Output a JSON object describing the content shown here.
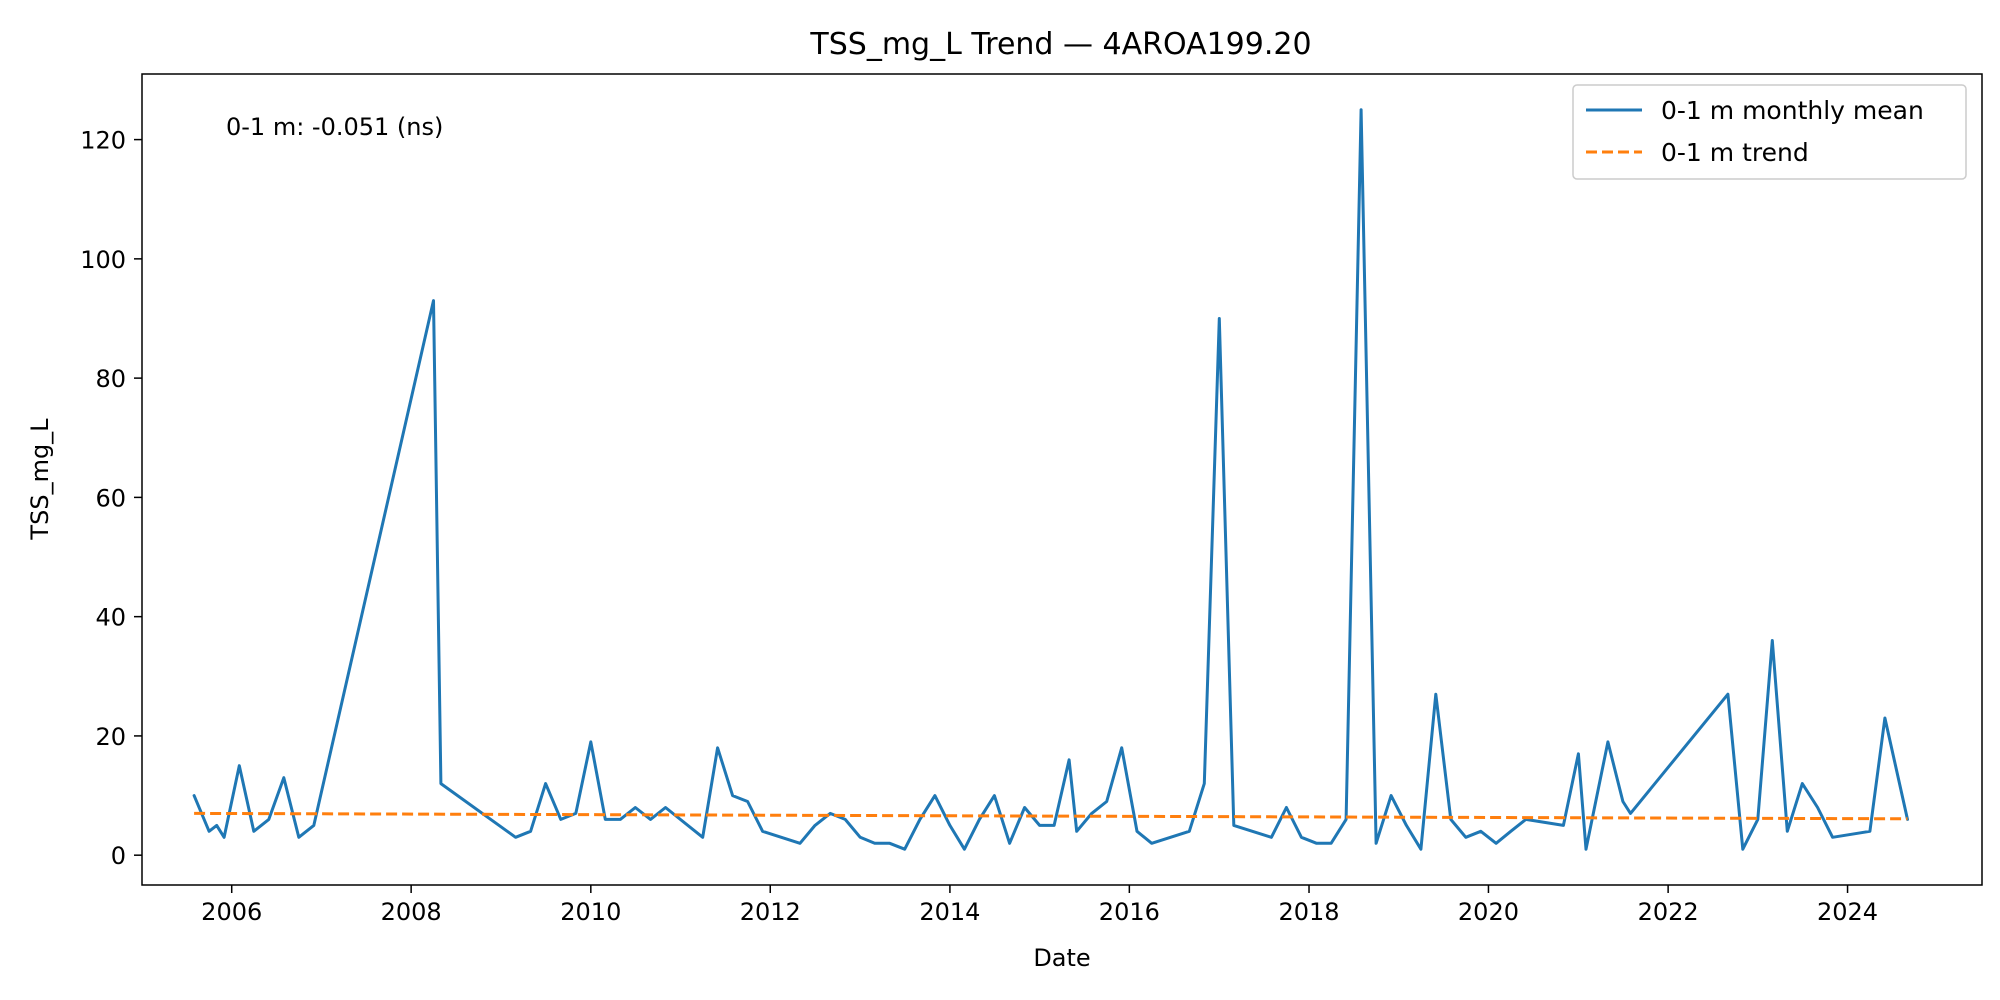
{
  "chart_data": {
    "type": "line",
    "title": "TSS_mg_L Trend — 4AROA199.20",
    "xlabel": "Date",
    "ylabel": "TSS_mg_L",
    "xlim": [
      "2005-01-01",
      "2025-07-01"
    ],
    "ylim": [
      -5,
      131
    ],
    "x_ticks": [
      "2006",
      "2008",
      "2010",
      "2012",
      "2014",
      "2016",
      "2018",
      "2020",
      "2022",
      "2024"
    ],
    "y_ticks": [
      0,
      20,
      40,
      60,
      80,
      100,
      120
    ],
    "grid": false,
    "legend_position": "top-right",
    "annotation": "0-1 m: -0.051 (ns)",
    "colors": {
      "monthly_mean": "#1f77b4",
      "trend": "#ff7f0e"
    },
    "series": [
      {
        "name": "0-1 m monthly mean",
        "style": "solid",
        "points": [
          [
            "2005-08-01",
            10
          ],
          [
            "2005-10-01",
            4
          ],
          [
            "2005-11-01",
            5
          ],
          [
            "2005-12-01",
            3
          ],
          [
            "2006-02-01",
            15
          ],
          [
            "2006-04-01",
            4
          ],
          [
            "2006-06-01",
            6
          ],
          [
            "2006-08-01",
            13
          ],
          [
            "2006-10-01",
            3
          ],
          [
            "2006-12-01",
            5
          ],
          [
            "2008-04-01",
            93
          ],
          [
            "2008-05-01",
            12
          ],
          [
            "2009-03-01",
            3
          ],
          [
            "2009-05-01",
            4
          ],
          [
            "2009-07-01",
            12
          ],
          [
            "2009-09-01",
            6
          ],
          [
            "2009-11-01",
            7
          ],
          [
            "2010-01-01",
            19
          ],
          [
            "2010-03-01",
            6
          ],
          [
            "2010-05-01",
            6
          ],
          [
            "2010-07-01",
            8
          ],
          [
            "2010-09-01",
            6
          ],
          [
            "2010-11-01",
            8
          ],
          [
            "2011-04-01",
            3
          ],
          [
            "2011-06-01",
            18
          ],
          [
            "2011-08-01",
            10
          ],
          [
            "2011-10-01",
            9
          ],
          [
            "2011-12-01",
            4
          ],
          [
            "2012-05-01",
            2
          ],
          [
            "2012-07-01",
            5
          ],
          [
            "2012-09-01",
            7
          ],
          [
            "2012-11-01",
            6
          ],
          [
            "2013-01-01",
            3
          ],
          [
            "2013-03-01",
            2
          ],
          [
            "2013-05-01",
            2
          ],
          [
            "2013-07-01",
            1
          ],
          [
            "2013-09-01",
            6
          ],
          [
            "2013-11-01",
            10
          ],
          [
            "2014-01-01",
            5
          ],
          [
            "2014-03-01",
            1
          ],
          [
            "2014-05-01",
            6
          ],
          [
            "2014-07-01",
            10
          ],
          [
            "2014-09-01",
            2
          ],
          [
            "2014-11-01",
            8
          ],
          [
            "2015-01-01",
            5
          ],
          [
            "2015-03-01",
            5
          ],
          [
            "2015-05-01",
            16
          ],
          [
            "2015-06-01",
            4
          ],
          [
            "2015-08-01",
            7
          ],
          [
            "2015-10-01",
            9
          ],
          [
            "2015-12-01",
            18
          ],
          [
            "2016-02-01",
            4
          ],
          [
            "2016-04-01",
            2
          ],
          [
            "2016-09-01",
            4
          ],
          [
            "2016-11-01",
            12
          ],
          [
            "2017-01-01",
            90
          ],
          [
            "2017-03-01",
            5
          ],
          [
            "2017-08-01",
            3
          ],
          [
            "2017-10-01",
            8
          ],
          [
            "2017-12-01",
            3
          ],
          [
            "2018-02-01",
            2
          ],
          [
            "2018-04-01",
            2
          ],
          [
            "2018-06-01",
            6
          ],
          [
            "2018-08-01",
            125
          ],
          [
            "2018-10-01",
            2
          ],
          [
            "2018-12-01",
            10
          ],
          [
            "2019-02-01",
            5
          ],
          [
            "2019-04-01",
            1
          ],
          [
            "2019-06-01",
            27
          ],
          [
            "2019-08-01",
            6
          ],
          [
            "2019-10-01",
            3
          ],
          [
            "2019-12-01",
            4
          ],
          [
            "2020-02-01",
            2
          ],
          [
            "2020-04-01",
            4
          ],
          [
            "2020-06-01",
            6
          ],
          [
            "2020-11-01",
            5
          ],
          [
            "2021-01-01",
            17
          ],
          [
            "2021-02-01",
            1
          ],
          [
            "2021-05-01",
            19
          ],
          [
            "2021-07-01",
            9
          ],
          [
            "2021-08-01",
            7
          ],
          [
            "2022-09-01",
            27
          ],
          [
            "2022-11-01",
            1
          ],
          [
            "2023-01-01",
            6
          ],
          [
            "2023-03-01",
            36
          ],
          [
            "2023-05-01",
            4
          ],
          [
            "2023-07-01",
            12
          ],
          [
            "2023-09-01",
            8
          ],
          [
            "2023-11-01",
            3
          ],
          [
            "2024-04-01",
            4
          ],
          [
            "2024-06-01",
            23
          ],
          [
            "2024-09-01",
            6
          ]
        ]
      },
      {
        "name": "0-1 m trend",
        "style": "dashed",
        "points": [
          [
            "2005-08-01",
            7.0
          ],
          [
            "2024-09-01",
            6.1
          ]
        ]
      }
    ]
  }
}
